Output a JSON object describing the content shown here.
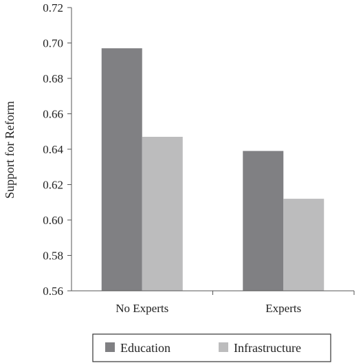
{
  "chart_data": {
    "type": "bar",
    "title": "",
    "xlabel": "",
    "ylabel": "Support for Reform",
    "ylim": [
      0.56,
      0.72
    ],
    "y_ticks": [
      "0.56",
      "0.58",
      "0.60",
      "0.62",
      "0.64",
      "0.66",
      "0.68",
      "0.70",
      "0.72"
    ],
    "categories": [
      "No Experts",
      "Experts"
    ],
    "series": [
      {
        "name": "Education",
        "values": [
          0.697,
          0.639
        ],
        "color": "#808083"
      },
      {
        "name": "Infrastructure",
        "values": [
          0.647,
          0.612
        ],
        "color": "#bcbcbd"
      }
    ],
    "grid": false,
    "legend_position": "bottom"
  }
}
